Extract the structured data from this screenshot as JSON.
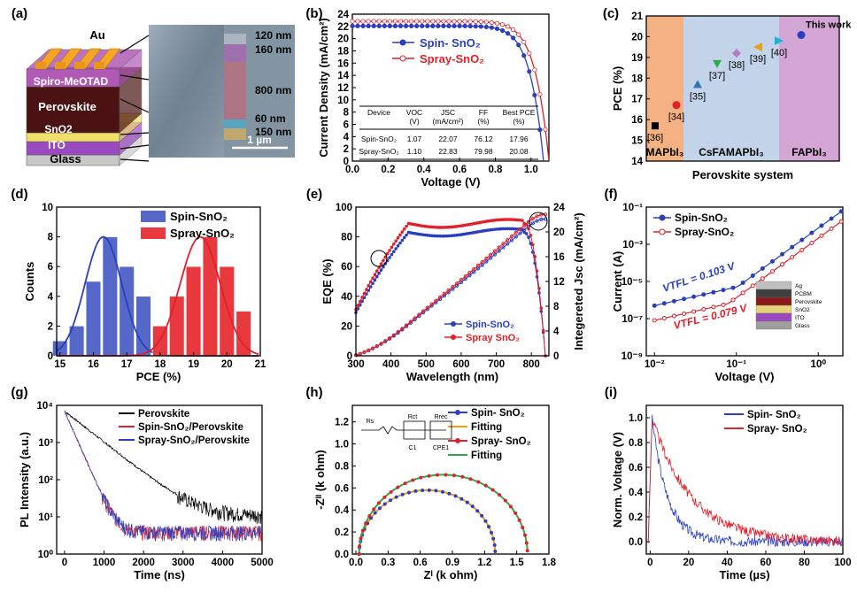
{
  "panels": {
    "a": {
      "label": "(a)",
      "layers": [
        "Au",
        "Spiro-MeOTAD",
        "Perovskite",
        "SnO2",
        "ITO",
        "Glass"
      ],
      "thickness": [
        "120 nm",
        "160 nm",
        "800 nm",
        "60 nm",
        "150 nm"
      ],
      "scale_bar": "1 µm",
      "colors": {
        "Au": "#f5a623",
        "Spiro": "#b05ab5",
        "Perovskite": "#4a1212",
        "SnO2": "#f0e06a",
        "ITO": "#9a4bbf",
        "Glass": "#c8c8c8"
      }
    },
    "b": {
      "label": "(b)",
      "table": {
        "headers": [
          "Device",
          "VOC",
          "JSC",
          "FF",
          "Best PCE"
        ],
        "units": [
          "",
          "(V)",
          "(mA/cm²)",
          "(%)",
          "(%)"
        ],
        "rows": [
          [
            "Spin-SnO₂",
            "1.07",
            "22.07",
            "76.12",
            "17.96"
          ],
          [
            "Spray-SnO₂",
            "1.10",
            "22.83",
            "79.98",
            "20.08"
          ]
        ]
      }
    },
    "c": {
      "label": "(c)"
    },
    "d": {
      "label": "(d)"
    },
    "e": {
      "label": "(e)"
    },
    "f": {
      "label": "(f)",
      "vtfl": [
        "V",
        "TFL",
        " = 0.103 V",
        " = 0.079 V"
      ],
      "device_layers": [
        "Ag",
        "PCBM",
        "Perovskite",
        "SnO2",
        "ITO",
        "Glass"
      ]
    },
    "g": {
      "label": "(g)"
    },
    "h": {
      "label": "(h)",
      "circuit": [
        "Rs",
        "Rct",
        "Rrec",
        "C1",
        "CPE1"
      ]
    },
    "i": {
      "label": "(i)"
    }
  },
  "chart_data": [
    {
      "id": "b",
      "type": "line",
      "xlabel": "Voltage (V)",
      "ylabel": "Current Density (mA/cm²)",
      "xlim": [
        0,
        1.1
      ],
      "ylim": [
        0,
        24
      ],
      "xticks": [
        "0.0",
        "0.2",
        "0.4",
        "0.6",
        "0.8",
        "1.0"
      ],
      "yticks": [
        "0",
        "2",
        "4",
        "6",
        "8",
        "10",
        "12",
        "14",
        "16",
        "18",
        "20",
        "22",
        "24"
      ],
      "series": [
        {
          "name": "Spin- SnO₂",
          "color": "#2a3fbf",
          "isc": 22.07,
          "voc": 1.07,
          "knee": 0.92
        },
        {
          "name": "Spray-SnO₂",
          "color": "#e0202a",
          "isc": 22.83,
          "voc": 1.1,
          "knee": 0.97
        }
      ]
    },
    {
      "id": "c",
      "type": "scatter",
      "xlabel": "Perovskite system",
      "ylabel": "PCE (%)",
      "ylim": [
        14,
        21
      ],
      "yticks": [
        "14",
        "15",
        "16",
        "17",
        "18",
        "19",
        "20",
        "21"
      ],
      "regions": [
        {
          "name": "MAPbI₃",
          "color": "#f4b183"
        },
        {
          "name": "CsFAMAPbI₃",
          "color": "#c3d4ea"
        },
        {
          "name": "FAPbI₃",
          "color": "#d4a6d6"
        }
      ],
      "points": [
        {
          "label": "[36]",
          "value": 15.7,
          "color": "#000000",
          "shape": "square"
        },
        {
          "label": "[34]",
          "value": 16.7,
          "color": "#e0202a",
          "shape": "circle"
        },
        {
          "label": "[35]",
          "value": 17.7,
          "color": "#2e75b6",
          "shape": "triangle-up"
        },
        {
          "label": "[37]",
          "value": 18.7,
          "color": "#2ea84a",
          "shape": "triangle-down"
        },
        {
          "label": "[38]",
          "value": 19.2,
          "color": "#b57bc6",
          "shape": "diamond"
        },
        {
          "label": "[39]",
          "value": 19.5,
          "color": "#e6a11a",
          "shape": "triangle-left"
        },
        {
          "label": "[40]",
          "value": 19.8,
          "color": "#1ab4d8",
          "shape": "triangle-right"
        },
        {
          "label": "This work",
          "value": 20.08,
          "color": "#2a3fbf",
          "shape": "circle"
        }
      ]
    },
    {
      "id": "d",
      "type": "bar",
      "xlabel": "PCE (%)",
      "ylabel": "Counts",
      "xlim": [
        15,
        21
      ],
      "ylim": [
        0,
        10
      ],
      "xticks": [
        "15",
        "16",
        "17",
        "18",
        "19",
        "20",
        "21"
      ],
      "yticks": [
        "0",
        "2",
        "4",
        "6",
        "8",
        "10"
      ],
      "series": [
        {
          "name": "Spin-SnO₂",
          "color": "#5567c8",
          "x": [
            15,
            15.5,
            16,
            16.5,
            17,
            17.5,
            18
          ],
          "values": [
            1,
            2,
            5,
            8,
            6,
            4,
            1
          ],
          "mean": 16.3,
          "sigma": 0.55,
          "peak": 8
        },
        {
          "name": "Spray-SnO₂",
          "color": "#e8393e",
          "x": [
            18,
            18.5,
            19,
            19.5,
            20,
            20.5
          ],
          "values": [
            2,
            4,
            6,
            8,
            6,
            3
          ],
          "mean": 19.2,
          "sigma": 0.6,
          "peak": 8
        }
      ]
    },
    {
      "id": "e",
      "type": "line",
      "xlabel": "Wavelength (nm)",
      "ylabel": "EQE (%)",
      "ylabel_right": "Integereted Jsc (mA/cm²)",
      "xlim": [
        300,
        850
      ],
      "ylim": [
        0,
        100
      ],
      "ylim_right": [
        0,
        24
      ],
      "xticks": [
        "300",
        "400",
        "500",
        "600",
        "700",
        "800"
      ],
      "yticks": [
        "0",
        "20",
        "40",
        "60",
        "80",
        "100"
      ],
      "yticks_right": [
        "0",
        "4",
        "8",
        "12",
        "16",
        "20",
        "24"
      ],
      "series": [
        {
          "name": "Spin-SnO₂",
          "color": "#2a3fbf",
          "plateau": 83,
          "jsc": 22.07
        },
        {
          "name": "Spray SnO₂",
          "color": "#e0202a",
          "plateau": 89,
          "jsc": 22.83
        }
      ]
    },
    {
      "id": "f",
      "type": "line",
      "xlabel": "Voltage (V)",
      "ylabel": "Current (A)",
      "xscale": "log",
      "yscale": "log",
      "xlim": [
        0.01,
        2
      ],
      "ylim": [
        1e-09,
        0.1
      ],
      "xticks": [
        "10⁻²",
        "10⁻¹",
        "10⁰"
      ],
      "yticks": [
        "10⁻⁹",
        "10⁻⁷",
        "10⁻⁵",
        "10⁻³",
        "10⁻¹"
      ],
      "series": [
        {
          "name": "Spin-SnO₂",
          "color": "#2a3fbf",
          "vtfl": 0.103
        },
        {
          "name": "Spray-SnO₂",
          "color": "#e0202a",
          "vtfl": 0.079
        }
      ]
    },
    {
      "id": "g",
      "type": "line",
      "xlabel": "Time (ns)",
      "ylabel": "PL Intensity (a.u.)",
      "yscale": "log",
      "xlim": [
        -200,
        5000
      ],
      "ylim": [
        1,
        10000
      ],
      "xticks": [
        "0",
        "1000",
        "2000",
        "3000",
        "4000",
        "5000"
      ],
      "yticks": [
        "10⁰",
        "10¹",
        "10²",
        "10³",
        "10⁴"
      ],
      "series": [
        {
          "name": "Perovskite",
          "color": "#000000"
        },
        {
          "name": "Spin-SnO₂/Perovskite",
          "color": "#e0202a"
        },
        {
          "name": "Spray-SnO₂/Perovskite",
          "color": "#2a3fbf"
        }
      ]
    },
    {
      "id": "h",
      "type": "line",
      "xlabel": "Zᴵ (k ohm)",
      "ylabel": "-Zᴵᴵ (k ohm)",
      "xlim": [
        0,
        1.8
      ],
      "ylim": [
        0,
        1.35
      ],
      "xticks": [
        "0.0",
        "0.3",
        "0.6",
        "0.9",
        "1.2",
        "1.5",
        "1.8"
      ],
      "yticks": [
        "0.0",
        "0.2",
        "0.4",
        "0.6",
        "0.8",
        "1.0",
        "1.2"
      ],
      "series": [
        {
          "name": "Spin- SnO₂",
          "color": "#2a3fbf",
          "r": 1.3
        },
        {
          "name": "Fitting",
          "color": "#f39c12"
        },
        {
          "name": "Spray- SnO₂",
          "color": "#e0202a",
          "r": 1.6
        },
        {
          "name": "Fitting",
          "color": "#2ea84a"
        }
      ]
    },
    {
      "id": "i",
      "type": "line",
      "xlabel": "Time (µs)",
      "ylabel": "Norm. Voltage (V)",
      "xlim": [
        -2,
        100
      ],
      "ylim": [
        -0.1,
        1.1
      ],
      "xticks": [
        "0",
        "20",
        "40",
        "60",
        "80",
        "100"
      ],
      "yticks": [
        "0.0",
        "0.2",
        "0.4",
        "0.6",
        "0.8",
        "1.0"
      ],
      "series": [
        {
          "name": "Spin- SnO₂",
          "color": "#2a3fbf",
          "tau": 8
        },
        {
          "name": "Spray- SnO₂",
          "color": "#e0202a",
          "tau": 20
        }
      ]
    }
  ]
}
